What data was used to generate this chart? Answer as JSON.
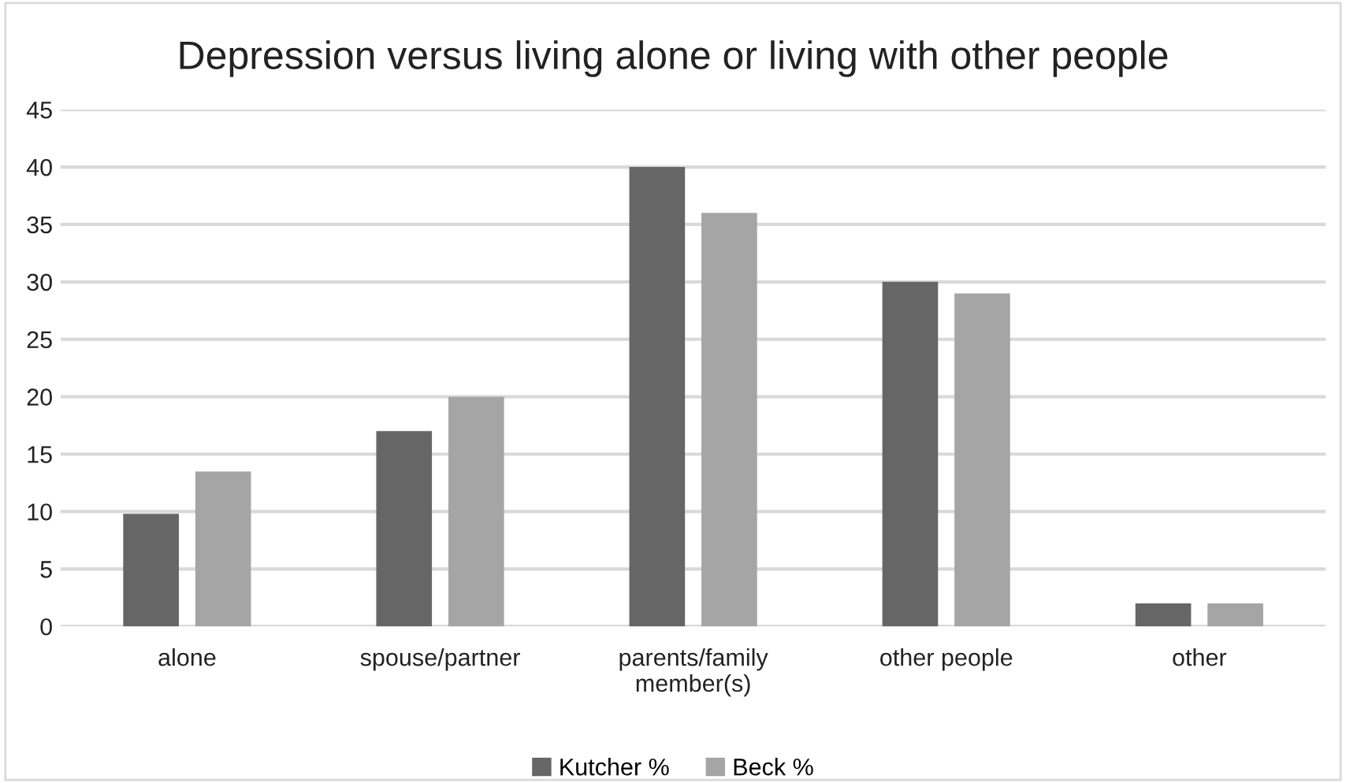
{
  "chart_data": {
    "type": "bar",
    "title": "Depression versus living alone or living with other people",
    "categories": [
      "alone",
      "spouse/partner",
      "parents/family member(s)",
      "other people",
      "other"
    ],
    "series": [
      {
        "name": "Kutcher %",
        "color": "#666666",
        "values": [
          9.8,
          17,
          40,
          30,
          2
        ]
      },
      {
        "name": "Beck %",
        "color": "#a5a5a5",
        "values": [
          13.5,
          20,
          36,
          29,
          2
        ]
      }
    ],
    "ylim": [
      0,
      45
    ],
    "yticks": [
      0,
      5,
      10,
      15,
      20,
      25,
      30,
      35,
      40,
      45
    ],
    "grid": "y",
    "legend": "bottom"
  }
}
